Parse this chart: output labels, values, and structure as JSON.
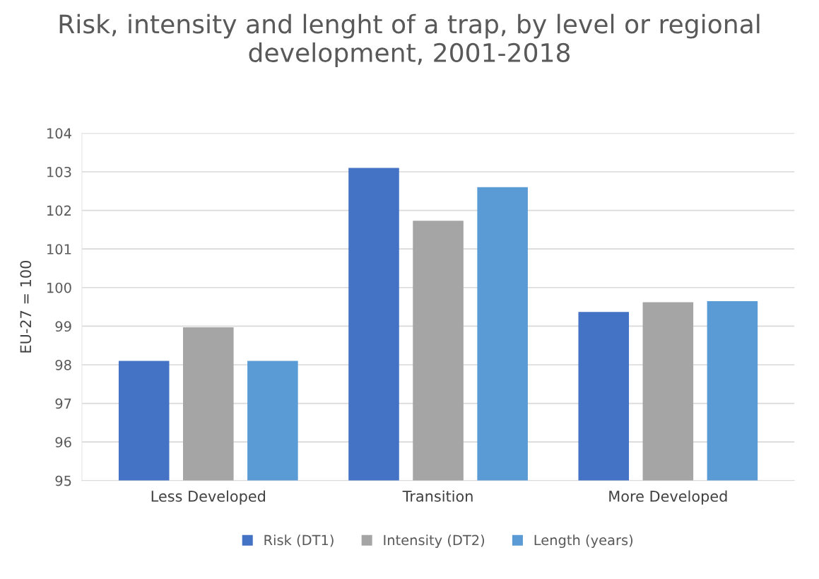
{
  "chart_data": {
    "type": "bar",
    "title": "Risk, intensity and lenght of a trap, by level or regional development, 2001-2018",
    "ylabel": "EU-27 = 100",
    "categories": [
      "Less Developed",
      "Transition",
      "More Developed"
    ],
    "series": [
      {
        "name": "Risk (DT1)",
        "color": "#4472c4",
        "values": [
          98.1,
          103.1,
          99.37
        ]
      },
      {
        "name": "Intensity (DT2)",
        "color": "#a5a5a5",
        "values": [
          98.97,
          101.73,
          99.62
        ]
      },
      {
        "name": "Length (years)",
        "color": "#5b9bd5",
        "values": [
          98.1,
          102.6,
          99.65
        ]
      }
    ],
    "ylim": [
      95,
      104
    ],
    "yticks": [
      95,
      96,
      97,
      98,
      99,
      100,
      101,
      102,
      103,
      104
    ],
    "grid": "y",
    "legend": "bottom"
  }
}
